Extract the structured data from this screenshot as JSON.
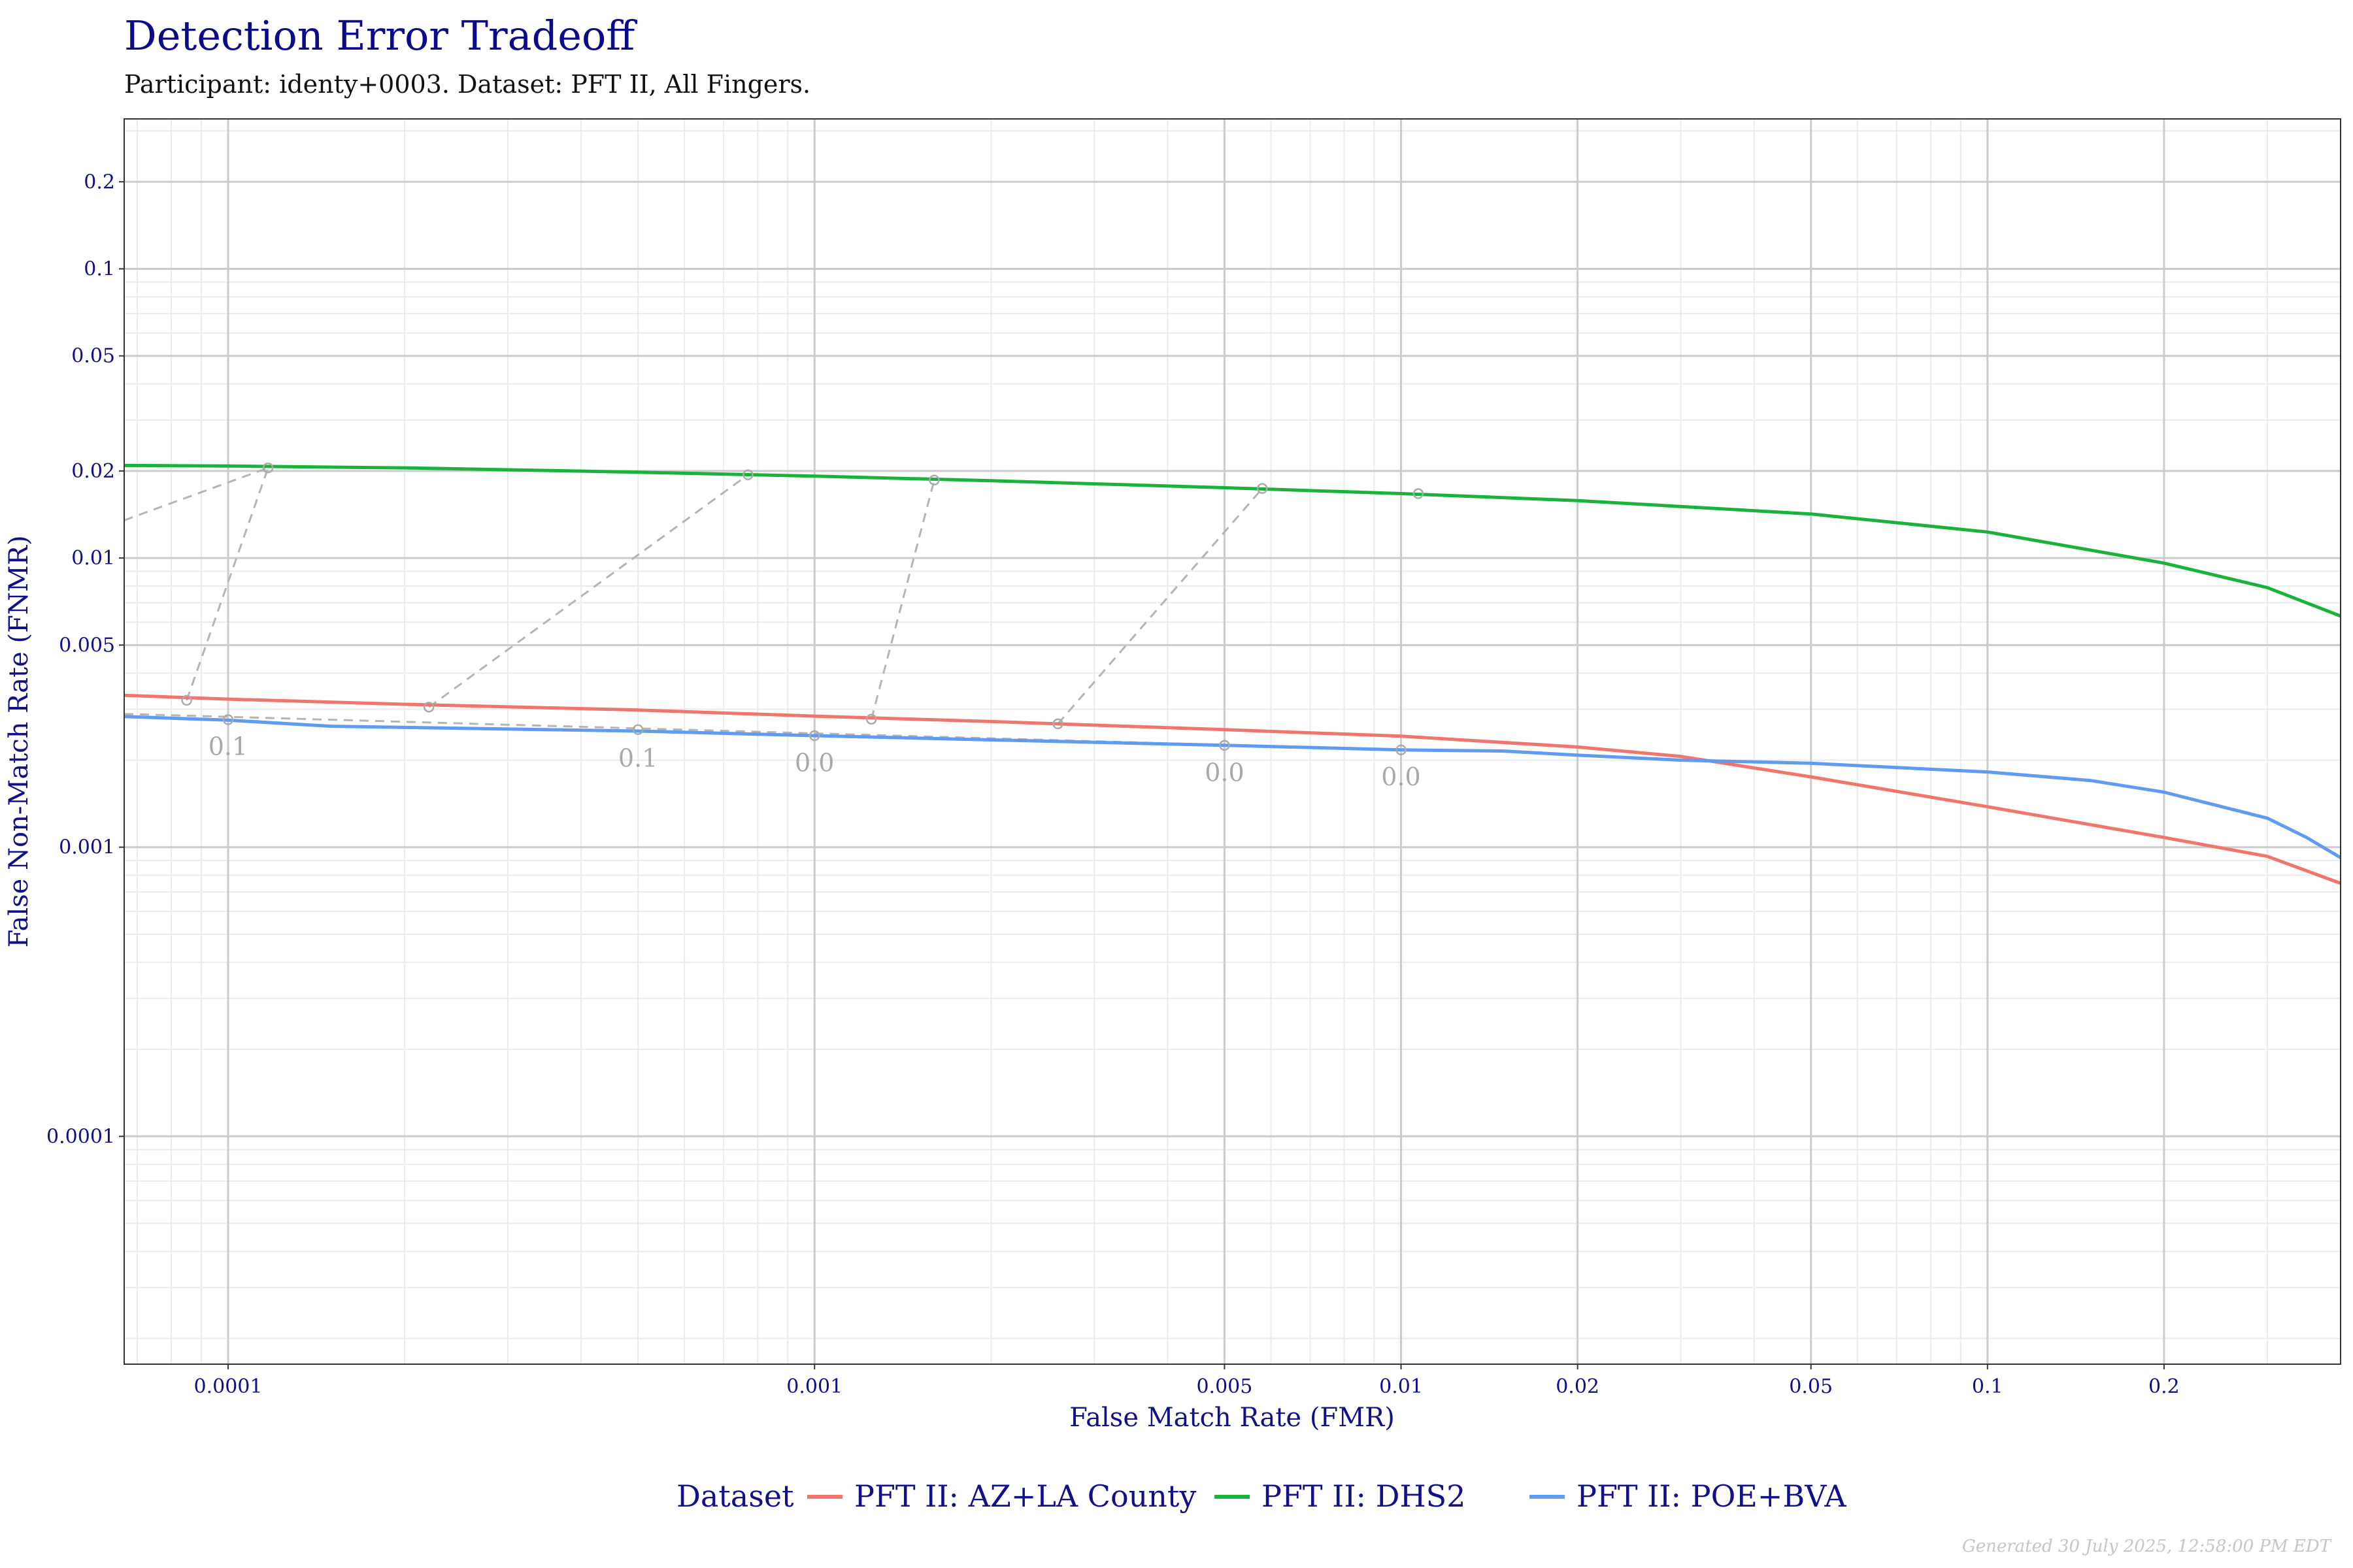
{
  "chart_data": {
    "type": "line",
    "title": "Detection Error Tradeoff",
    "subtitle": "Participant: identy+0003. Dataset: PFT II, All Fingers.",
    "xlabel": "False Match Rate (FMR)",
    "ylabel": "False Non-Match Rate (FNMR)",
    "x_scale": "log",
    "y_scale": "log",
    "xlim": [
      6.65e-05,
      0.4
    ],
    "ylim": [
      1.63e-05,
      0.33
    ],
    "x_ticks": [
      {
        "value": 0.0001,
        "label": "0.0001"
      },
      {
        "value": 0.001,
        "label": "0.001"
      },
      {
        "value": 0.005,
        "label": "0.005"
      },
      {
        "value": 0.01,
        "label": "0.01"
      },
      {
        "value": 0.02,
        "label": "0.02"
      },
      {
        "value": 0.05,
        "label": "0.05"
      },
      {
        "value": 0.1,
        "label": "0.1"
      },
      {
        "value": 0.2,
        "label": "0.2"
      }
    ],
    "y_ticks": [
      {
        "value": 0.2,
        "label": "0.2"
      },
      {
        "value": 0.1,
        "label": "0.1"
      },
      {
        "value": 0.05,
        "label": "0.05"
      },
      {
        "value": 0.02,
        "label": "0.02"
      },
      {
        "value": 0.01,
        "label": "0.01"
      },
      {
        "value": 0.005,
        "label": "0.005"
      },
      {
        "value": 0.001,
        "label": "0.001"
      },
      {
        "value": 0.0001,
        "label": "0.0001"
      }
    ],
    "grid": true,
    "legend": {
      "title": "Dataset",
      "position": "bottom"
    },
    "series": [
      {
        "name": "PFT II: AZ+LA County",
        "color": "#f0766d",
        "points": [
          [
            6.65e-05,
            0.00335
          ],
          [
            0.0001,
            0.00325
          ],
          [
            0.0002,
            0.00312
          ],
          [
            0.0005,
            0.00298
          ],
          [
            0.001,
            0.00284
          ],
          [
            0.002,
            0.00272
          ],
          [
            0.005,
            0.00255
          ],
          [
            0.01,
            0.00242
          ],
          [
            0.02,
            0.00222
          ],
          [
            0.03,
            0.00206
          ],
          [
            0.05,
            0.00175
          ],
          [
            0.1,
            0.00138
          ],
          [
            0.2,
            0.00108
          ],
          [
            0.3,
            0.00093
          ],
          [
            0.4,
            0.00075
          ]
        ]
      },
      {
        "name": "PFT II: DHS2",
        "color": "#19b33c",
        "points": [
          [
            6.65e-05,
            0.0209
          ],
          [
            0.0001,
            0.0208
          ],
          [
            0.0002,
            0.0205
          ],
          [
            0.0005,
            0.0198
          ],
          [
            0.001,
            0.0192
          ],
          [
            0.002,
            0.0185
          ],
          [
            0.005,
            0.0175
          ],
          [
            0.01,
            0.0167
          ],
          [
            0.02,
            0.0158
          ],
          [
            0.05,
            0.0142
          ],
          [
            0.1,
            0.0123
          ],
          [
            0.2,
            0.0096
          ],
          [
            0.3,
            0.0079
          ],
          [
            0.4,
            0.0063
          ]
        ]
      },
      {
        "name": "PFT II: POE+BVA",
        "color": "#5f9bf2",
        "points": [
          [
            6.65e-05,
            0.00283
          ],
          [
            0.0001,
            0.00275
          ],
          [
            0.00015,
            0.00262
          ],
          [
            0.0005,
            0.00252
          ],
          [
            0.001,
            0.00243
          ],
          [
            0.002,
            0.00235
          ],
          [
            0.005,
            0.00225
          ],
          [
            0.01,
            0.00217
          ],
          [
            0.015,
            0.00215
          ],
          [
            0.02,
            0.00208
          ],
          [
            0.03,
            0.002
          ],
          [
            0.05,
            0.00195
          ],
          [
            0.1,
            0.00182
          ],
          [
            0.15,
            0.0017
          ],
          [
            0.2,
            0.00155
          ],
          [
            0.3,
            0.00126
          ],
          [
            0.35,
            0.00108
          ],
          [
            0.4,
            0.00092
          ]
        ]
      }
    ],
    "threshold_links": [
      {
        "from": [
          6.65e-05,
          0.0135
        ],
        "to": [
          6.65e-05,
          0.0135
        ]
      },
      {
        "from": [
          8.5e-05,
          0.00322
        ],
        "to": [
          0.000117,
          0.0205
        ]
      },
      {
        "from": [
          0.00022,
          0.00305
        ],
        "to": [
          0.00077,
          0.0194
        ]
      },
      {
        "from": [
          0.00125,
          0.00277
        ],
        "to": [
          0.0016,
          0.0186
        ]
      },
      {
        "from": [
          0.0026,
          0.00267
        ],
        "to": [
          0.0058,
          0.0174
        ]
      },
      {
        "from": [
          6.65e-05,
          0.00289
        ],
        "to": [
          0.01,
          0.00217
        ]
      }
    ],
    "threshold_markers": [
      {
        "x": 8.5e-05,
        "y": 0.00322
      },
      {
        "x": 0.000117,
        "y": 0.0205
      },
      {
        "x": 0.0001,
        "y": 0.00276
      },
      {
        "x": 0.00022,
        "y": 0.00305
      },
      {
        "x": 0.00077,
        "y": 0.0194
      },
      {
        "x": 0.0005,
        "y": 0.00255
      },
      {
        "x": 0.00125,
        "y": 0.00277
      },
      {
        "x": 0.0016,
        "y": 0.0186
      },
      {
        "x": 0.001,
        "y": 0.00243
      },
      {
        "x": 0.0026,
        "y": 0.00267
      },
      {
        "x": 0.0058,
        "y": 0.0174
      },
      {
        "x": 0.005,
        "y": 0.00225
      },
      {
        "x": 0.0107,
        "y": 0.0167
      },
      {
        "x": 0.01,
        "y": 0.00217
      }
    ],
    "threshold_labels": [
      {
        "x": 0.0001,
        "y": 0.00222,
        "text": "0.1"
      },
      {
        "x": 0.0005,
        "y": 0.00202,
        "text": "0.1"
      },
      {
        "x": 0.001,
        "y": 0.00195,
        "text": "0.0"
      },
      {
        "x": 0.005,
        "y": 0.0018,
        "text": "0.0"
      },
      {
        "x": 0.01,
        "y": 0.00174,
        "text": "0.0"
      }
    ]
  },
  "footer": "Generated 30 July 2025, 12:58:00 PM EDT"
}
